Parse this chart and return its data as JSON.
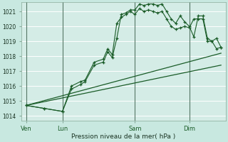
{
  "background_color": "#c8e8e0",
  "grid_color": "#ffffff",
  "line_color": "#1a5c28",
  "plot_bg": "#d4ece6",
  "ylabel_ticks": [
    1014,
    1015,
    1016,
    1017,
    1018,
    1019,
    1020,
    1021
  ],
  "ylim": [
    1013.7,
    1021.6
  ],
  "xlabel": "Pression niveau de la mer( hPa )",
  "day_labels": [
    "Ven",
    "Lun",
    "Sam",
    "Dim"
  ],
  "day_positions": [
    0,
    8,
    24,
    36
  ],
  "vline_color": "#557766",
  "series1_x": [
    0,
    4,
    8,
    10,
    12,
    13,
    15,
    17,
    18,
    19,
    20,
    21,
    22,
    23,
    24,
    25,
    26,
    27,
    28,
    29,
    30,
    31,
    32,
    33,
    34,
    35,
    36,
    37,
    38,
    39,
    40,
    41,
    42,
    43
  ],
  "series1_y": [
    1014.7,
    1014.5,
    1014.3,
    1015.8,
    1016.1,
    1016.3,
    1017.4,
    1017.6,
    1018.3,
    1017.9,
    1019.2,
    1020.8,
    1020.9,
    1021.1,
    1021.1,
    1021.5,
    1021.4,
    1021.5,
    1021.5,
    1021.4,
    1021.5,
    1021.0,
    1020.5,
    1020.2,
    1020.7,
    1020.3,
    1020.0,
    1019.3,
    1020.7,
    1020.7,
    1019.2,
    1019.0,
    1019.2,
    1018.6
  ],
  "series2_x": [
    0,
    4,
    8,
    10,
    12,
    13,
    15,
    17,
    18,
    19,
    20,
    21,
    22,
    23,
    24,
    25,
    26,
    27,
    28,
    29,
    30,
    31,
    32,
    33,
    34,
    35,
    36,
    37,
    38,
    39,
    40,
    41,
    42,
    43
  ],
  "series2_y": [
    1014.7,
    1014.5,
    1014.3,
    1016.0,
    1016.3,
    1016.4,
    1017.6,
    1017.8,
    1018.5,
    1018.1,
    1020.2,
    1020.6,
    1020.8,
    1021.0,
    1020.8,
    1021.2,
    1021.0,
    1021.1,
    1021.0,
    1020.9,
    1021.0,
    1020.5,
    1020.0,
    1019.8,
    1019.9,
    1020.0,
    1019.9,
    1020.5,
    1020.5,
    1020.5,
    1019.0,
    1019.0,
    1018.5,
    1018.6
  ],
  "series3_x": [
    0,
    43
  ],
  "series3_y": [
    1014.7,
    1018.2
  ],
  "series4_x": [
    0,
    43
  ],
  "series4_y": [
    1014.7,
    1017.4
  ],
  "xlim": [
    -1,
    44
  ],
  "figsize": [
    3.2,
    2.0
  ],
  "dpi": 100
}
